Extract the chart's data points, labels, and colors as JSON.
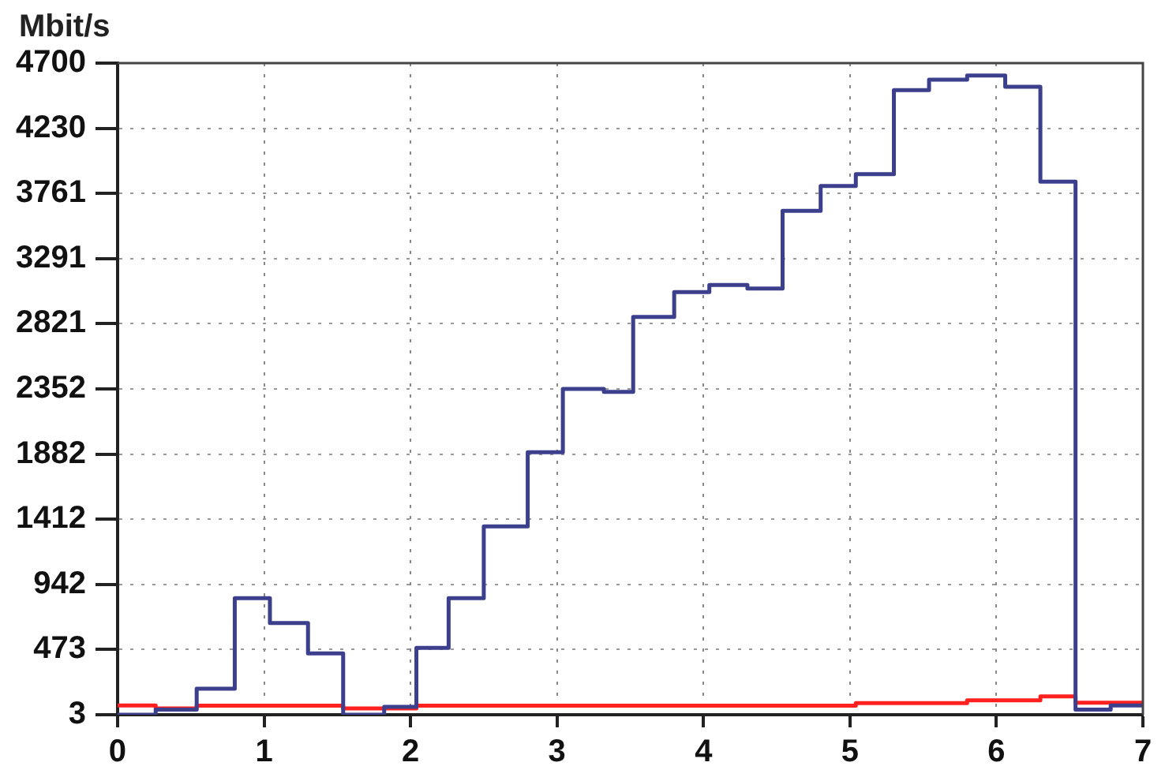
{
  "chart_data": {
    "type": "step",
    "ylabel": "Mbit/s",
    "xlim": [
      0,
      7
    ],
    "xticks": [
      0,
      1,
      2,
      3,
      4,
      5,
      6,
      7
    ],
    "ylim": [
      3,
      4700
    ],
    "yticks": [
      3,
      473,
      942,
      1412,
      1882,
      2352,
      2821,
      3291,
      3761,
      4230,
      4700
    ],
    "grid": true,
    "legend": false,
    "marker": "none",
    "series": [
      {
        "color": "#3b3f8c",
        "x": [
          0,
          0.26,
          0.54,
          0.8,
          1.04,
          1.3,
          1.54,
          1.82,
          2.04,
          2.26,
          2.5,
          2.8,
          3.04,
          3.32,
          3.52,
          3.8,
          4.04,
          4.3,
          4.54,
          4.8,
          5.04,
          5.3,
          5.54,
          5.8,
          6.06,
          6.3,
          6.54,
          6.78,
          7
        ],
        "values": [
          3,
          40,
          190,
          843,
          664,
          445,
          3,
          60,
          485,
          843,
          1360,
          1895,
          2352,
          2330,
          2870,
          3050,
          3100,
          3075,
          3635,
          3815,
          3900,
          4505,
          4580,
          4610,
          4530,
          3845,
          40,
          70,
          70
        ]
      },
      {
        "color": "#ff2020",
        "x": [
          0,
          0.26,
          0.54,
          1.54,
          2.04,
          4.54,
          5.04,
          5.8,
          6.3,
          6.54,
          7
        ],
        "values": [
          70,
          48,
          68,
          48,
          68,
          68,
          87,
          107,
          135,
          90,
          90
        ]
      }
    ]
  }
}
